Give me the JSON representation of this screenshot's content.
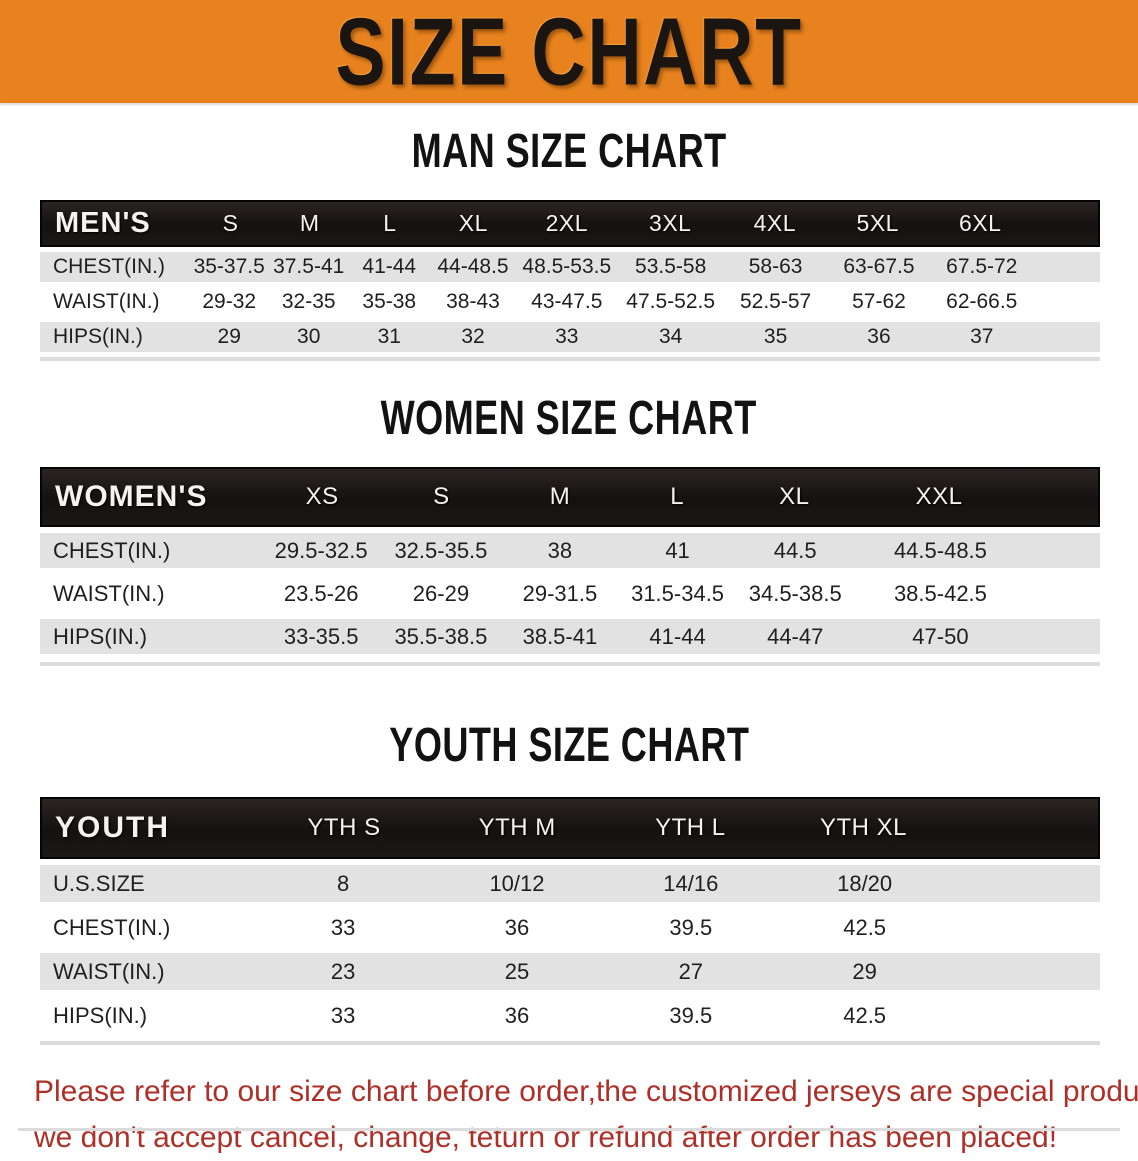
{
  "banner": {
    "title": "SIZE CHART",
    "bg_color": "#E8821E",
    "text_color": "#1A1510"
  },
  "sections": {
    "men": {
      "heading": "MAN SIZE CHART",
      "table": {
        "header": [
          "MEN'S",
          "S",
          "M",
          "L",
          "XL",
          "2XL",
          "3XL",
          "4XL",
          "5XL",
          "6XL"
        ],
        "rows": [
          {
            "label": "CHEST(IN.)",
            "values": [
              "35-37.5",
              "37.5-41",
              "41-44",
              "44-48.5",
              "48.5-53.5",
              "53.5-58",
              "58-63",
              "63-67.5",
              "67.5-72"
            ]
          },
          {
            "label": "WAIST(IN.)",
            "values": [
              "29-32",
              "32-35",
              "35-38",
              "38-43",
              "43-47.5",
              "47.5-52.5",
              "52.5-57",
              "57-62",
              "62-66.5"
            ]
          },
          {
            "label": "HIPS(IN.)",
            "values": [
              "29",
              "30",
              "31",
              "32",
              "33",
              "34",
              "35",
              "36",
              "37"
            ]
          }
        ]
      }
    },
    "women": {
      "heading": "WOMEN SIZE CHART",
      "table": {
        "header": [
          "WOMEN'S",
          "XS",
          "S",
          "M",
          "L",
          "XL",
          "XXL"
        ],
        "rows": [
          {
            "label": "CHEST(IN.)",
            "values": [
              "29.5-32.5",
              "32.5-35.5",
              "38",
              "41",
              "44.5",
              "44.5-48.5"
            ]
          },
          {
            "label": "WAIST(IN.)",
            "values": [
              "23.5-26",
              "26-29",
              "29-31.5",
              "31.5-34.5",
              "34.5-38.5",
              "38.5-42.5"
            ]
          },
          {
            "label": "HIPS(IN.)",
            "values": [
              "33-35.5",
              "35.5-38.5",
              "38.5-41",
              "41-44",
              "44-47",
              "47-50"
            ]
          }
        ]
      }
    },
    "youth": {
      "heading": "YOUTH SIZE CHART",
      "table": {
        "header": [
          "YOUTH",
          "YTH S",
          "YTH M",
          "YTH L",
          "YTH XL"
        ],
        "rows": [
          {
            "label": "U.S.SIZE",
            "values": [
              "8",
              "10/12",
              "14/16",
              "18/20"
            ]
          },
          {
            "label": "CHEST(IN.)",
            "values": [
              "33",
              "36",
              "39.5",
              "42.5"
            ]
          },
          {
            "label": "WAIST(IN.)",
            "values": [
              "23",
              "25",
              "27",
              "29"
            ]
          },
          {
            "label": "HIPS(IN.)",
            "values": [
              "33",
              "36",
              "39.5",
              "42.5"
            ]
          }
        ]
      }
    }
  },
  "footer": {
    "lines": [
      "Please refer to our size chart before order,the customized jerseys are special products,",
      "we don't accept cancel, change, teturn or refund after order has been placed!"
    ],
    "text_color": "#AE2F28"
  },
  "style_colors": {
    "header_bar": "#1A1612",
    "row_stripe_gray": "#E2E2E2",
    "row_stripe_white": "#FFFFFF",
    "table_text": "#1F1F1F"
  }
}
